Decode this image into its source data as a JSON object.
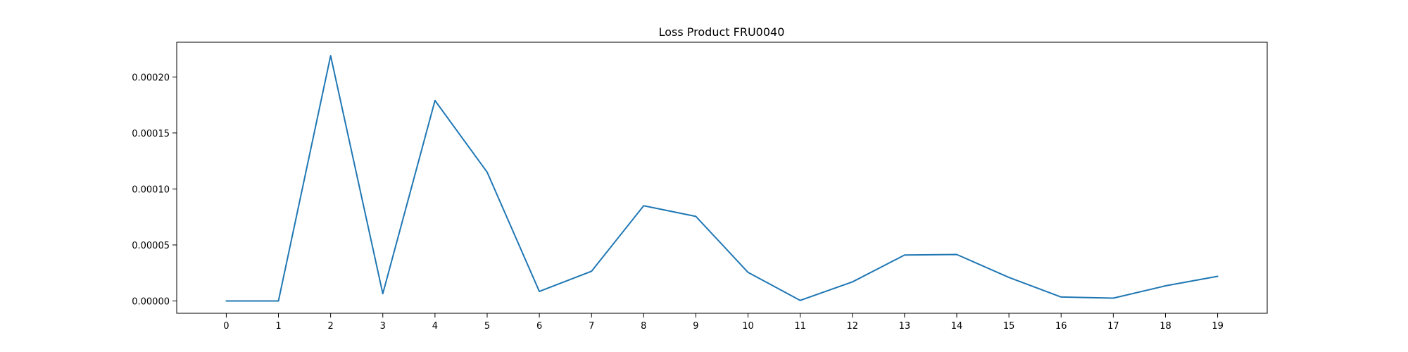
{
  "chart_data": {
    "type": "line",
    "title": "Loss Product FRU0040",
    "xlabel": "",
    "ylabel": "",
    "x": [
      0,
      1,
      2,
      3,
      4,
      5,
      6,
      7,
      8,
      9,
      10,
      11,
      12,
      13,
      14,
      15,
      16,
      17,
      18,
      19
    ],
    "x_tick_labels": [
      "0",
      "1",
      "2",
      "3",
      "4",
      "5",
      "6",
      "7",
      "8",
      "9",
      "10",
      "11",
      "12",
      "13",
      "14",
      "15",
      "16",
      "17",
      "18",
      "19"
    ],
    "y_ticks": [
      0,
      5e-05,
      0.0001,
      0.00015,
      0.0002
    ],
    "y_tick_labels": [
      "0.00000",
      "0.00005",
      "0.00010",
      "0.00015",
      "0.00020"
    ],
    "xlim": [
      -0.95,
      19.95
    ],
    "ylim": [
      -1.1e-05,
      0.000231
    ],
    "grid": false,
    "series": [
      {
        "color": "#1f77b4",
        "values": [
          0.0,
          0.0,
          0.000219,
          6.5e-06,
          0.000179,
          0.000115,
          8.5e-06,
          2.65e-05,
          8.5e-05,
          7.55e-05,
          2.55e-05,
          5e-07,
          1.7e-05,
          4.1e-05,
          4.15e-05,
          2.1e-05,
          3.5e-06,
          2.5e-06,
          1.35e-05,
          2.2e-05
        ]
      }
    ]
  }
}
